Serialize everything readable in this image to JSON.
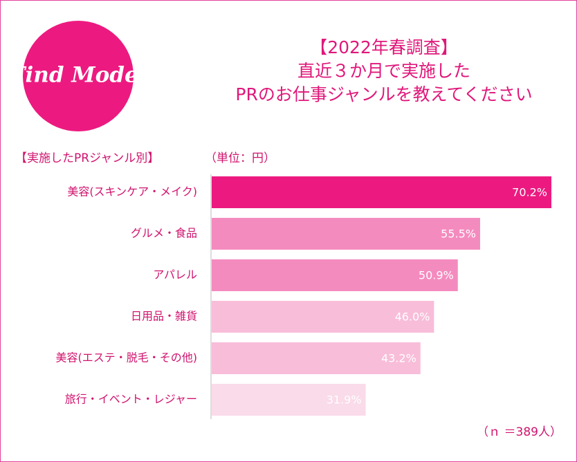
{
  "chart_data": {
    "type": "hbar",
    "logo": "Find Model",
    "title": [
      "【2022年春調査】",
      "直近３か月で実施した",
      "PRのお仕事ジャンルを教えてください"
    ],
    "group_label": "【実施したPRジャンル別】",
    "unit_label": "（単位：円）",
    "note": "（ｎ ＝389人）",
    "categories": [
      "美容(スキンケア・メイク)",
      "グルメ・食品",
      "アパレル",
      "日用品・雑貨",
      "美容(エステ・脱毛・その他)",
      "旅行・イベント・レジャー"
    ],
    "values": [
      70.2,
      55.5,
      50.9,
      46.0,
      43.2,
      31.9
    ],
    "value_labels": [
      "70.2%",
      "55.5%",
      "50.9%",
      "46.0%",
      "43.2%",
      "31.9%"
    ],
    "colors": [
      "#ec1a80",
      "#f48bbf",
      "#f48bbf",
      "#f8bdd9",
      "#f8bdd9",
      "#fadbe9"
    ]
  }
}
